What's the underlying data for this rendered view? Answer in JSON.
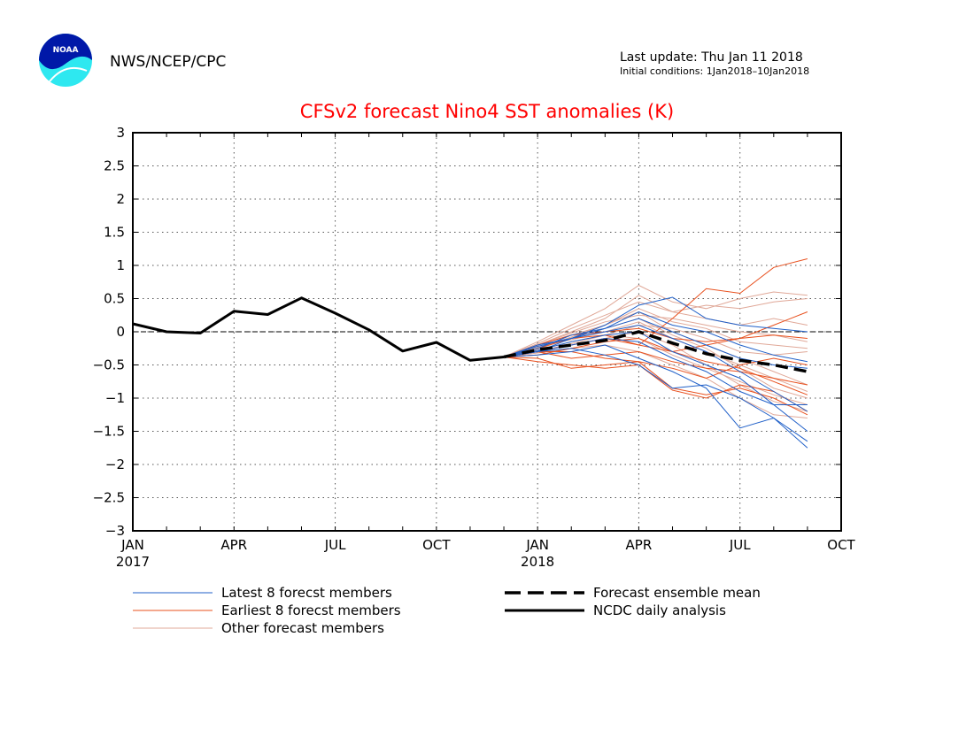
{
  "header": {
    "agency": "NWS/NCEP/CPC",
    "last_update": "Last update: Thu Jan 11 2018",
    "initial_conditions": "Initial conditions: 1Jan2018–10Jan2018",
    "logo_text": "NOAA"
  },
  "chart_data": {
    "type": "line",
    "title": "CFSv2 forecast Nino4 SST anomalies (K)",
    "xlabel": "",
    "ylabel": "",
    "ylim": [
      -3,
      3
    ],
    "grid": true,
    "x_tick_labels": [
      {
        "label": "JAN",
        "sub": "2017",
        "month_index": 0
      },
      {
        "label": "APR",
        "sub": "",
        "month_index": 3
      },
      {
        "label": "JUL",
        "sub": "",
        "month_index": 6
      },
      {
        "label": "OCT",
        "sub": "",
        "month_index": 9
      },
      {
        "label": "JAN",
        "sub": "2018",
        "month_index": 12
      },
      {
        "label": "APR",
        "sub": "",
        "month_index": 15
      },
      {
        "label": "JUL",
        "sub": "",
        "month_index": 18
      },
      {
        "label": "OCT",
        "sub": "",
        "month_index": 21
      }
    ],
    "y_tick_labels": [
      "3",
      "2.5",
      "2",
      "1.5",
      "1",
      "0.5",
      "0",
      "−0.5",
      "−1",
      "−1.5",
      "−2",
      "−2.5",
      "−3"
    ],
    "colors": {
      "latest": "#1f5fc8",
      "earliest": "#e8501e",
      "other": "#e0a898",
      "analysis": "#000000",
      "title": "#ff0000"
    },
    "analysis": {
      "name": "NCDC daily analysis",
      "x": [
        "2017-01",
        "2017-02",
        "2017-03",
        "2017-04",
        "2017-05",
        "2017-06",
        "2017-07",
        "2017-08",
        "2017-09",
        "2017-10",
        "2017-11",
        "2017-12"
      ],
      "values": [
        0.12,
        0.0,
        -0.02,
        0.31,
        0.26,
        0.51,
        0.28,
        0.03,
        -0.29,
        -0.16,
        -0.43,
        -0.38
      ]
    },
    "ensemble_mean": {
      "name": "Forecast ensemble mean",
      "x": [
        "2017-12",
        "2018-01",
        "2018-02",
        "2018-03",
        "2018-04",
        "2018-05",
        "2018-06",
        "2018-07",
        "2018-08",
        "2018-09"
      ],
      "values": [
        -0.38,
        -0.27,
        -0.2,
        -0.13,
        0.0,
        -0.17,
        -0.33,
        -0.43,
        -0.5,
        -0.6
      ]
    },
    "forecast_x": [
      "2017-12",
      "2018-01",
      "2018-02",
      "2018-03",
      "2018-04",
      "2018-05",
      "2018-06",
      "2018-07",
      "2018-08",
      "2018-09"
    ],
    "latest_members": [
      [
        -0.38,
        -0.3,
        -0.1,
        0.1,
        0.4,
        0.52,
        0.2,
        0.1,
        0.05,
        0.0
      ],
      [
        -0.38,
        -0.25,
        -0.05,
        0.05,
        0.2,
        0.0,
        -0.2,
        -0.4,
        -0.5,
        -0.55
      ],
      [
        -0.38,
        -0.35,
        -0.3,
        -0.2,
        -0.4,
        -0.6,
        -0.85,
        -1.45,
        -1.3,
        -1.75
      ],
      [
        -0.38,
        -0.2,
        -0.1,
        0.0,
        0.1,
        -0.1,
        -0.3,
        -0.6,
        -0.9,
        -1.2
      ],
      [
        -0.38,
        -0.3,
        -0.25,
        -0.35,
        -0.5,
        -0.85,
        -0.8,
        -1.0,
        -1.3,
        -1.65
      ],
      [
        -0.38,
        -0.28,
        -0.15,
        -0.05,
        0.0,
        -0.3,
        -0.5,
        -0.7,
        -1.1,
        -1.5
      ],
      [
        -0.38,
        -0.22,
        -0.1,
        0.05,
        0.3,
        0.1,
        0.0,
        -0.2,
        -0.35,
        -0.45
      ],
      [
        -0.38,
        -0.3,
        -0.2,
        -0.1,
        -0.15,
        -0.4,
        -0.6,
        -0.9,
        -1.1,
        -1.1
      ]
    ],
    "earliest_members": [
      [
        -0.38,
        -0.3,
        -0.2,
        -0.1,
        -0.2,
        0.2,
        0.65,
        0.58,
        0.97,
        1.1
      ],
      [
        -0.38,
        -0.4,
        -0.55,
        -0.5,
        -0.45,
        -0.85,
        -0.95,
        -0.85,
        -1.0,
        -1.25
      ],
      [
        -0.38,
        -0.3,
        -0.4,
        -0.35,
        -0.3,
        -0.45,
        -0.55,
        -0.6,
        -0.7,
        -0.8
      ],
      [
        -0.38,
        -0.2,
        -0.05,
        0.0,
        0.05,
        -0.1,
        -0.15,
        -0.1,
        -0.05,
        -0.1
      ],
      [
        -0.38,
        -0.45,
        -0.5,
        -0.55,
        -0.5,
        -0.88,
        -1.0,
        -0.8,
        -0.9,
        -1.2
      ],
      [
        -0.38,
        -0.25,
        -0.1,
        -0.05,
        -0.2,
        -0.3,
        -0.2,
        -0.1,
        0.1,
        0.3
      ],
      [
        -0.38,
        -0.3,
        -0.3,
        -0.4,
        -0.45,
        -0.55,
        -0.7,
        -0.5,
        -0.4,
        -0.5
      ],
      [
        -0.38,
        -0.35,
        -0.25,
        -0.15,
        -0.1,
        -0.3,
        -0.45,
        -0.55,
        -0.75,
        -0.95
      ]
    ],
    "other_members": [
      [
        -0.38,
        -0.15,
        0.1,
        0.35,
        0.7,
        0.45,
        0.35,
        0.5,
        0.6,
        0.55
      ],
      [
        -0.38,
        -0.2,
        0.0,
        0.2,
        0.55,
        0.3,
        0.2,
        0.1,
        0.2,
        0.1
      ],
      [
        -0.38,
        -0.25,
        -0.05,
        0.1,
        0.3,
        0.0,
        -0.2,
        -0.4,
        -0.6,
        -0.8
      ],
      [
        -0.38,
        -0.3,
        -0.2,
        -0.1,
        0.0,
        -0.2,
        -0.5,
        -0.8,
        -1.05,
        -1.2
      ],
      [
        -0.38,
        -0.22,
        -0.12,
        0.0,
        0.15,
        -0.1,
        -0.3,
        -0.5,
        -0.7,
        -0.9
      ],
      [
        -0.38,
        -0.28,
        -0.15,
        -0.05,
        0.1,
        0.05,
        -0.1,
        -0.3,
        -0.35,
        -0.3
      ],
      [
        -0.38,
        -0.18,
        0.05,
        0.25,
        0.45,
        0.3,
        0.4,
        0.35,
        0.45,
        0.5
      ],
      [
        -0.38,
        -0.32,
        -0.25,
        -0.2,
        -0.3,
        -0.5,
        -0.7,
        -1.0,
        -1.25,
        -1.3
      ],
      [
        -0.38,
        -0.26,
        -0.1,
        0.05,
        0.2,
        -0.05,
        -0.25,
        -0.55,
        -0.85,
        -1.0
      ],
      [
        -0.38,
        -0.24,
        -0.08,
        0.1,
        0.35,
        0.15,
        0.05,
        -0.15,
        -0.2,
        -0.25
      ],
      [
        -0.38,
        -0.3,
        -0.18,
        -0.05,
        -0.1,
        -0.35,
        -0.55,
        -0.75,
        -0.95,
        -1.1
      ],
      [
        -0.38,
        -0.2,
        -0.02,
        0.15,
        0.25,
        0.2,
        0.1,
        0.0,
        -0.05,
        -0.15
      ]
    ],
    "legend": [
      {
        "key": "latest",
        "label": "Latest 8 forecst members",
        "style": "thin-blue"
      },
      {
        "key": "earliest",
        "label": "Earliest 8 forecst members",
        "style": "thin-orange"
      },
      {
        "key": "other",
        "label": "Other forecast members",
        "style": "thin-pink"
      },
      {
        "key": "mean",
        "label": "Forecast ensemble mean",
        "style": "thick-dashed"
      },
      {
        "key": "analysis",
        "label": "NCDC daily analysis",
        "style": "thick-solid"
      }
    ]
  }
}
